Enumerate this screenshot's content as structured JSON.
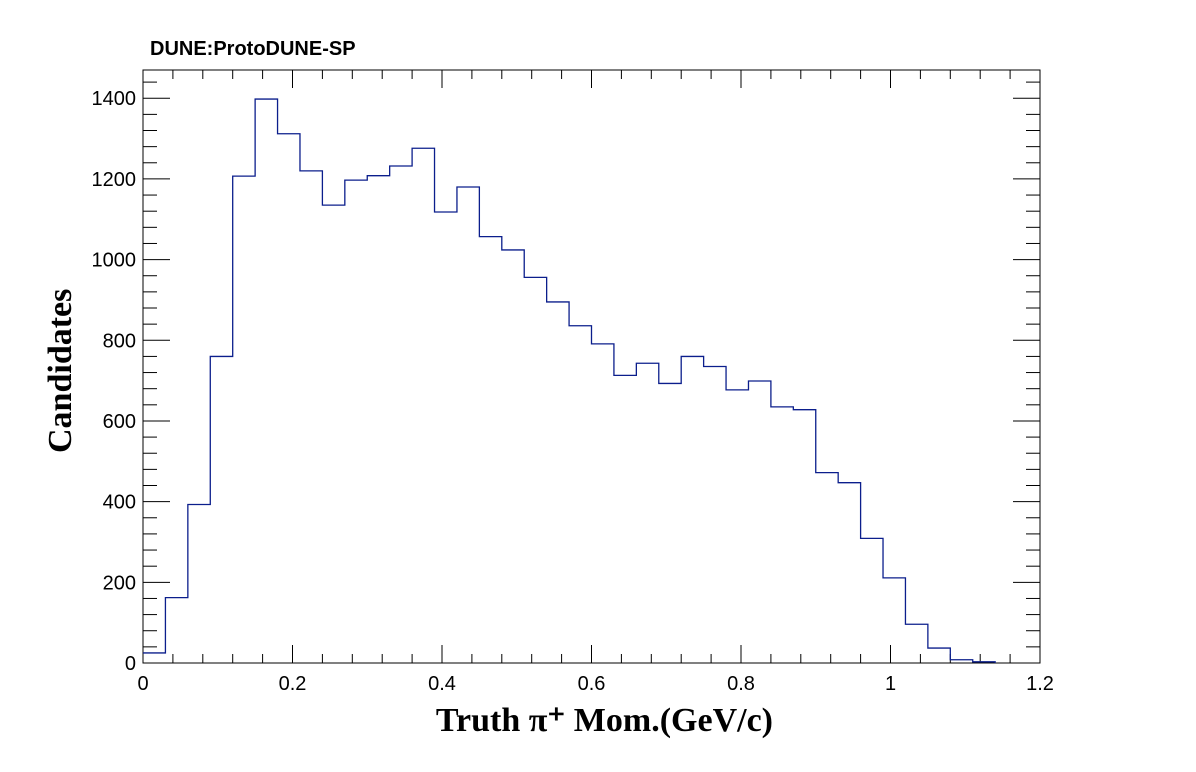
{
  "chart_data": {
    "type": "histogram",
    "title": "DUNE:ProtoDUNE-SP",
    "xlabel": "Truth  π⁺ Mom.(GeV/c)",
    "ylabel": "Candidates",
    "xlim": [
      0,
      1.2
    ],
    "ylim": [
      0,
      1470
    ],
    "x_ticks": [
      0,
      0.2,
      0.4,
      0.6,
      0.8,
      1,
      1.2
    ],
    "x_tick_labels": [
      "0",
      "0.2",
      "0.4",
      "0.6",
      "0.8",
      "1",
      "1.2"
    ],
    "y_ticks": [
      0,
      200,
      400,
      600,
      800,
      1000,
      1200,
      1400
    ],
    "y_tick_labels": [
      "0",
      "200",
      "400",
      "600",
      "800",
      "1000",
      "1200",
      "1400"
    ],
    "bin_width": 0.03,
    "bin_edges_start": 0,
    "values": [
      25,
      162,
      393,
      760,
      1207,
      1398,
      1312,
      1220,
      1135,
      1197,
      1208,
      1232,
      1276,
      1118,
      1180,
      1057,
      1024,
      956,
      895,
      836,
      791,
      713,
      743,
      693,
      760,
      735,
      677,
      699,
      635,
      628,
      472,
      447,
      309,
      211,
      96,
      37,
      8,
      3
    ],
    "line_color": "#0b1e8c",
    "grid": false,
    "legend": "none"
  }
}
